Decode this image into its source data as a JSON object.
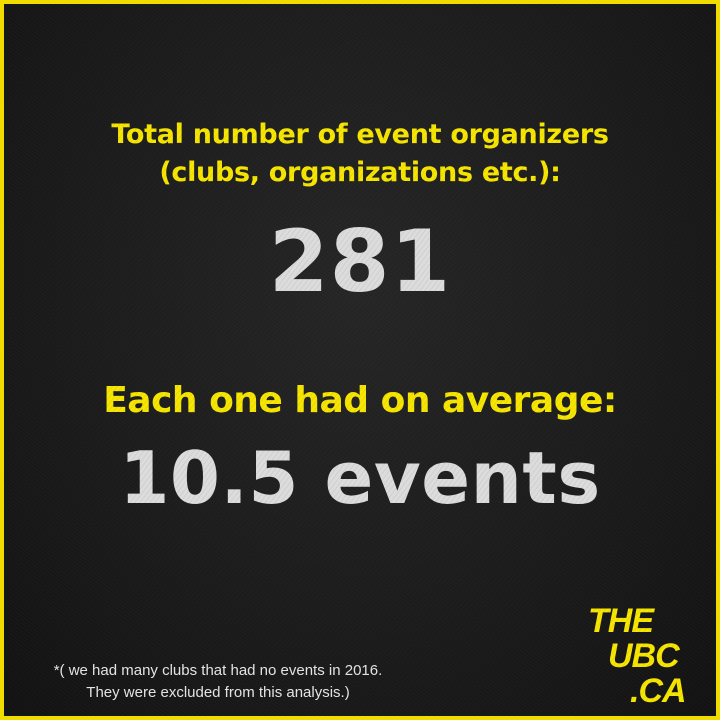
{
  "heading": {
    "line1": "Total number of event organizers",
    "line2": "(clubs, organizations etc.):"
  },
  "organizer_count": "281",
  "average": {
    "label": "Each one had on average:",
    "value": "10.5 events"
  },
  "footnote": {
    "line1": "*( we had many clubs that had no events in 2016.",
    "line2": "They were excluded from this analysis.)"
  },
  "logo": {
    "line1": "THE",
    "line2": "UBC",
    "line3": ".CA"
  },
  "colors": {
    "accent": "#f7e600",
    "number": "#dcdcdc",
    "background": "#1c1c1c"
  }
}
